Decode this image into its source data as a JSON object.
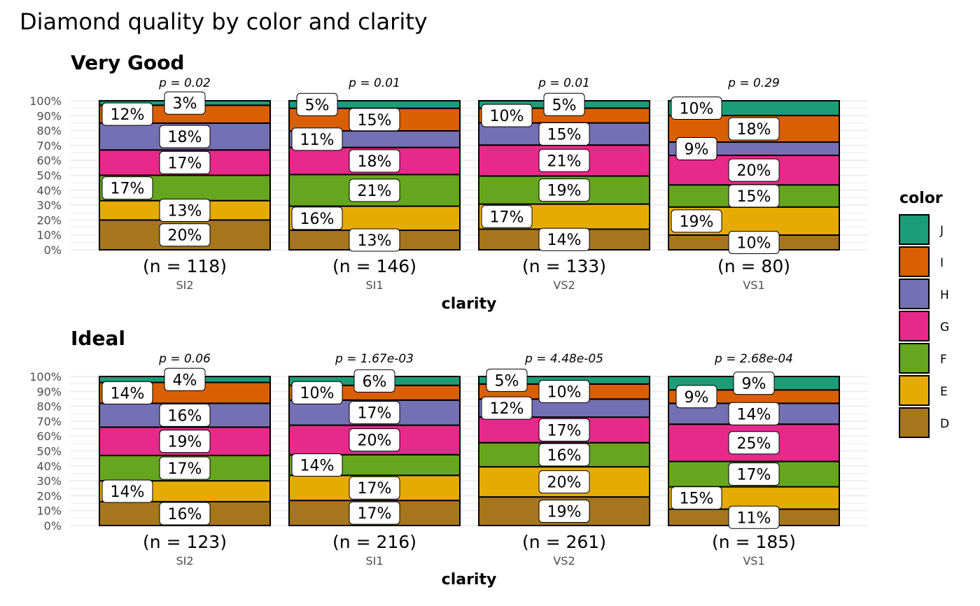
{
  "chart_data": {
    "type": "bar",
    "stacked": "percent",
    "title": "Diamond quality by color and clarity",
    "xlabel": "clarity",
    "ylabel": "",
    "ylim": [
      0,
      100
    ],
    "yticks": [
      "0%",
      "10%",
      "20%",
      "30%",
      "40%",
      "50%",
      "60%",
      "70%",
      "80%",
      "90%",
      "100%"
    ],
    "categories": [
      "SI2",
      "SI1",
      "VS2",
      "VS1"
    ],
    "legend": {
      "title": "color",
      "position": "right",
      "entries": [
        "J",
        "I",
        "H",
        "G",
        "F",
        "E",
        "D"
      ]
    },
    "color_order_bottom_to_top": [
      "D",
      "E",
      "F",
      "G",
      "H",
      "I",
      "J"
    ],
    "colors": {
      "D": "#A6761D",
      "E": "#E6AB02",
      "F": "#66A61E",
      "G": "#E7298A",
      "H": "#7570B3",
      "I": "#D95F02",
      "J": "#1B9E77"
    },
    "panels": [
      {
        "name": "Very Good",
        "p_values": [
          "p = 0.02",
          "p = 0.01",
          "p = 0.01",
          "p = 0.29"
        ],
        "n_labels": [
          "(n = 118)",
          "(n = 146)",
          "(n = 133)",
          "(n = 80)"
        ],
        "percents": [
          [
            20,
            13,
            17,
            17,
            18,
            12,
            3
          ],
          [
            13,
            16,
            21,
            18,
            11,
            15,
            5
          ],
          [
            14,
            17,
            19,
            21,
            15,
            10,
            5
          ],
          [
            10,
            19,
            15,
            20,
            9,
            18,
            10
          ]
        ]
      },
      {
        "name": "Ideal",
        "p_values": [
          "p = 0.06",
          "p = 1.67e-03",
          "p = 4.48e-05",
          "p = 2.68e-04"
        ],
        "n_labels": [
          "(n = 123)",
          "(n = 216)",
          "(n = 261)",
          "(n = 185)"
        ],
        "percents": [
          [
            16,
            14,
            17,
            19,
            16,
            14,
            4
          ],
          [
            17,
            17,
            14,
            20,
            17,
            10,
            6
          ],
          [
            19,
            20,
            16,
            17,
            12,
            10,
            5
          ],
          [
            11,
            15,
            17,
            25,
            14,
            9,
            9
          ]
        ]
      }
    ]
  }
}
